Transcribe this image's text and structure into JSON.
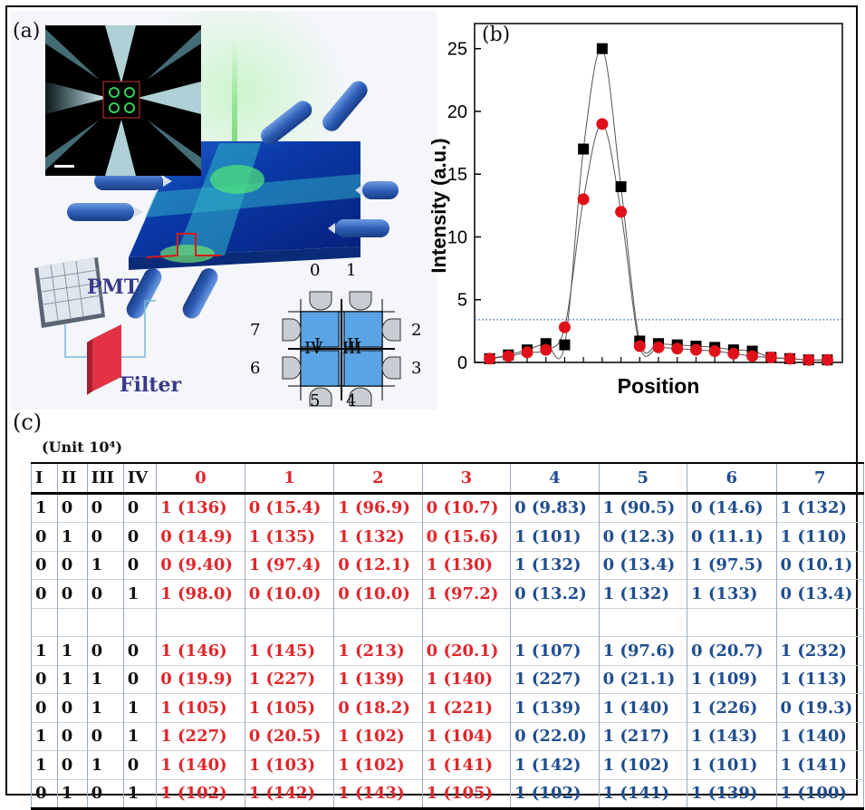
{
  "labels": {
    "a": "(a)",
    "b": "(b)",
    "c": "(c)"
  },
  "panel_a": {
    "pmt_label": "PMT",
    "filter_label": "Filter",
    "unit_quadrants": [
      "I",
      "II",
      "III",
      "IV"
    ],
    "port_numbers": [
      "0",
      "1",
      "2",
      "3",
      "4",
      "5",
      "6",
      "7"
    ]
  },
  "chart_data": {
    "type": "scatter",
    "title": "",
    "xlabel": "Position",
    "ylabel": "Intensity (a.u.)",
    "ylim": [
      0,
      27
    ],
    "yticks": [
      "0",
      "5",
      "10",
      "15",
      "20",
      "25"
    ],
    "x": [
      1,
      2,
      3,
      4,
      5,
      6,
      7,
      8,
      9,
      10,
      11,
      12,
      13,
      14,
      15,
      16,
      17,
      18,
      19
    ],
    "threshold": 3.4,
    "series": [
      {
        "marker": "square",
        "color": "#000000",
        "values": [
          0.3,
          0.6,
          1.0,
          1.5,
          1.4,
          17,
          25,
          14,
          1.7,
          1.5,
          1.4,
          1.3,
          1.2,
          1.0,
          0.9,
          0.4,
          0.3,
          0.2,
          0.2
        ]
      },
      {
        "marker": "circle",
        "color": "#e0101a",
        "values": [
          0.3,
          0.5,
          0.8,
          1.0,
          2.8,
          13,
          19,
          12,
          1.3,
          1.2,
          1.1,
          1.0,
          0.9,
          0.7,
          0.5,
          0.4,
          0.3,
          0.2,
          0.2
        ]
      }
    ]
  },
  "table": {
    "unit": "(Unit 10⁴)",
    "headers": [
      "I",
      "II",
      "III",
      "IV",
      "0",
      "1",
      "2",
      "3",
      "4",
      "5",
      "6",
      "7"
    ],
    "rows": [
      [
        "1",
        "0",
        "0",
        "0",
        "1 (136)",
        "0 (15.4)",
        "1 (96.9)",
        "0 (10.7)",
        "0 (9.83)",
        "1 (90.5)",
        "0 (14.6)",
        "1 (132)"
      ],
      [
        "0",
        "1",
        "0",
        "0",
        "0 (14.9)",
        "1 (135)",
        "1 (132)",
        "0 (15.6)",
        "1 (101)",
        "0 (12.3)",
        "0 (11.1)",
        "1 (110)"
      ],
      [
        "0",
        "0",
        "1",
        "0",
        "0 (9.40)",
        "1 (97.4)",
        "0 (12.1)",
        "1 (130)",
        "1 (132)",
        "0 (13.4)",
        "1 (97.5)",
        "0 (10.1)"
      ],
      [
        "0",
        "0",
        "0",
        "1",
        "1 (98.0)",
        "0 (10.0)",
        "0 (10.0)",
        "1 (97.2)",
        "0 (13.2)",
        "1 (132)",
        "1 (133)",
        "0 (13.4)"
      ],
      [
        "",
        "",
        "",
        "",
        "",
        "",
        "",
        "",
        "",
        "",
        "",
        ""
      ],
      [
        "1",
        "1",
        "0",
        "0",
        "1 (146)",
        "1 (145)",
        "1 (213)",
        "0 (20.1)",
        "1 (107)",
        "1 (97.6)",
        "0 (20.7)",
        "1 (232)"
      ],
      [
        "0",
        "1",
        "1",
        "0",
        "0 (19.9)",
        "1 (227)",
        "1 (139)",
        "1 (140)",
        "1 (227)",
        "0 (21.1)",
        "1 (109)",
        "1 (113)"
      ],
      [
        "0",
        "0",
        "1",
        "1",
        "1 (105)",
        "1 (105)",
        "0 (18.2)",
        "1 (221)",
        "1 (139)",
        "1 (140)",
        "1 (226)",
        "0 (19.3)"
      ],
      [
        "1",
        "0",
        "0",
        "1",
        "1 (227)",
        "0 (20.5)",
        "1 (102)",
        "1 (104)",
        "0 (22.0)",
        "1 (217)",
        "1 (143)",
        "1 (140)"
      ],
      [
        "1",
        "0",
        "1",
        "0",
        "1 (140)",
        "1 (103)",
        "1 (102)",
        "1 (141)",
        "1 (142)",
        "1 (102)",
        "1 (101)",
        "1 (141)"
      ],
      [
        "0",
        "1",
        "0",
        "1",
        "1 (102)",
        "1 (142)",
        "1 (143)",
        "1 (105)",
        "1 (102)",
        "1 (141)",
        "1 (139)",
        "1 (100)"
      ]
    ]
  }
}
